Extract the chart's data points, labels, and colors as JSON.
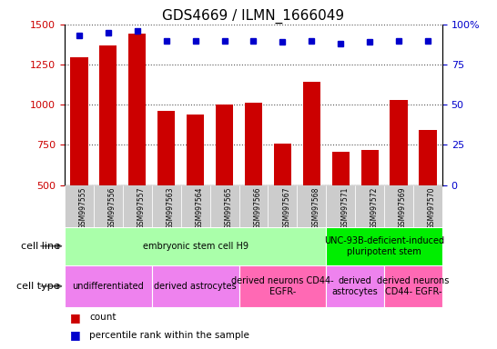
{
  "title": "GDS4669 / ILMN_1666049",
  "samples": [
    "GSM997555",
    "GSM997556",
    "GSM997557",
    "GSM997563",
    "GSM997564",
    "GSM997565",
    "GSM997566",
    "GSM997567",
    "GSM997568",
    "GSM997571",
    "GSM997572",
    "GSM997569",
    "GSM997570"
  ],
  "counts": [
    1295,
    1370,
    1445,
    960,
    940,
    1000,
    1010,
    755,
    1145,
    705,
    720,
    1030,
    840
  ],
  "percentiles": [
    93,
    95,
    96,
    90,
    90,
    90,
    90,
    89,
    90,
    88,
    89,
    90,
    90
  ],
  "ylim_left": [
    500,
    1500
  ],
  "ylim_right": [
    0,
    100
  ],
  "yticks_left": [
    500,
    750,
    1000,
    1250,
    1500
  ],
  "yticks_right": [
    0,
    25,
    50,
    75,
    100
  ],
  "bar_color": "#cc0000",
  "dot_color": "#0000cc",
  "cell_line_groups": [
    {
      "label": "embryonic stem cell H9",
      "start": 0,
      "end": 9,
      "color": "#aaffaa"
    },
    {
      "label": "UNC-93B-deficient-induced\npluripotent stem",
      "start": 9,
      "end": 13,
      "color": "#00ee00"
    }
  ],
  "cell_type_groups": [
    {
      "label": "undifferentiated",
      "start": 0,
      "end": 3,
      "color": "#ee82ee"
    },
    {
      "label": "derived astrocytes",
      "start": 3,
      "end": 6,
      "color": "#ee82ee"
    },
    {
      "label": "derived neurons CD44-\nEGFR-",
      "start": 6,
      "end": 9,
      "color": "#ff69b4"
    },
    {
      "label": "derived\nastrocytes",
      "start": 9,
      "end": 11,
      "color": "#ee82ee"
    },
    {
      "label": "derived neurons\nCD44- EGFR-",
      "start": 11,
      "end": 13,
      "color": "#ff69b4"
    }
  ],
  "legend_items": [
    {
      "label": "count",
      "color": "#cc0000"
    },
    {
      "label": "percentile rank within the sample",
      "color": "#0000cc"
    }
  ],
  "title_fontsize": 11,
  "bar_width": 0.6,
  "xtick_bg_color": "#cccccc",
  "grid_color": "#555555",
  "row_label_fontsize": 8,
  "cell_label_fontsize": 7
}
